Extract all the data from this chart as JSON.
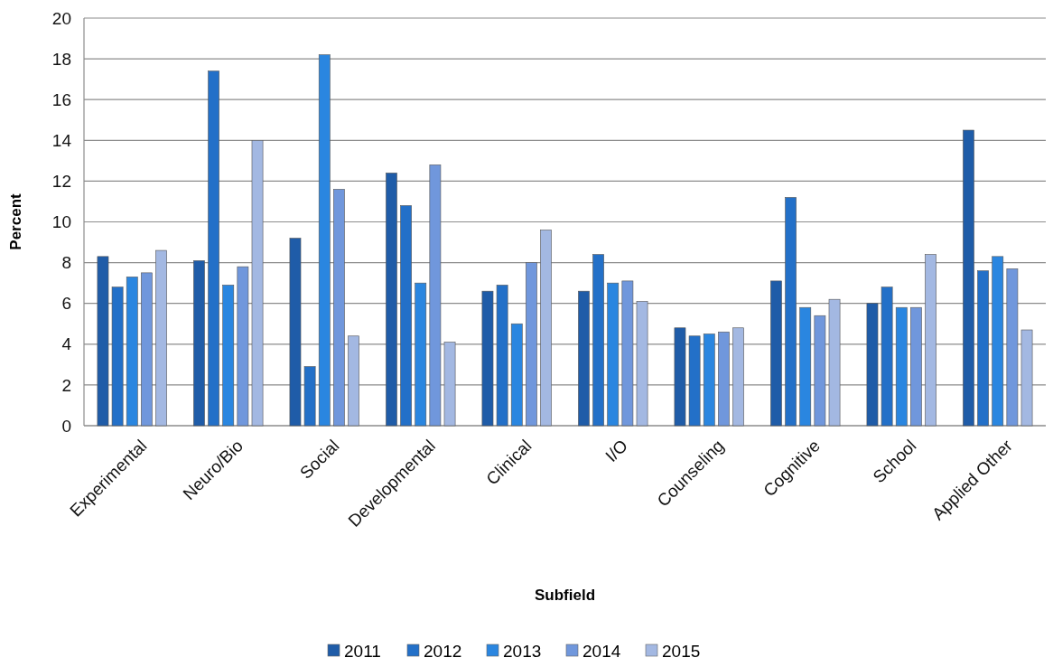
{
  "chart_data": {
    "type": "bar",
    "xlabel": "Subfield",
    "ylabel": "Percent",
    "categories": [
      "Experimental",
      "Neuro/Bio",
      "Social",
      "Developmental",
      "Clinical",
      "I/O",
      "Counseling",
      "Cognitive",
      "School",
      "Applied Other"
    ],
    "series": [
      {
        "name": "2011",
        "color": "#1f5ca8",
        "values": [
          8.3,
          8.1,
          9.2,
          12.4,
          6.6,
          6.6,
          4.8,
          7.1,
          6.0,
          14.5
        ]
      },
      {
        "name": "2012",
        "color": "#2370c8",
        "values": [
          6.8,
          17.4,
          2.9,
          10.8,
          6.9,
          8.4,
          4.4,
          11.2,
          6.8,
          7.6
        ]
      },
      {
        "name": "2013",
        "color": "#2a86e0",
        "values": [
          7.3,
          6.9,
          18.2,
          7.0,
          5.0,
          7.0,
          4.5,
          5.8,
          5.8,
          8.3
        ]
      },
      {
        "name": "2014",
        "color": "#7097dc",
        "values": [
          7.5,
          7.8,
          11.6,
          12.8,
          8.0,
          7.1,
          4.6,
          5.4,
          5.8,
          7.7
        ]
      },
      {
        "name": "2015",
        "color": "#a3b8e2",
        "values": [
          8.6,
          14.0,
          4.4,
          4.1,
          9.6,
          6.1,
          4.8,
          6.2,
          8.4,
          4.7
        ]
      }
    ],
    "ylim": [
      0,
      20
    ],
    "yticks": [
      0,
      2,
      4,
      6,
      8,
      10,
      12,
      14,
      16,
      18,
      20
    ],
    "grid": "y",
    "legend": "bottom"
  }
}
